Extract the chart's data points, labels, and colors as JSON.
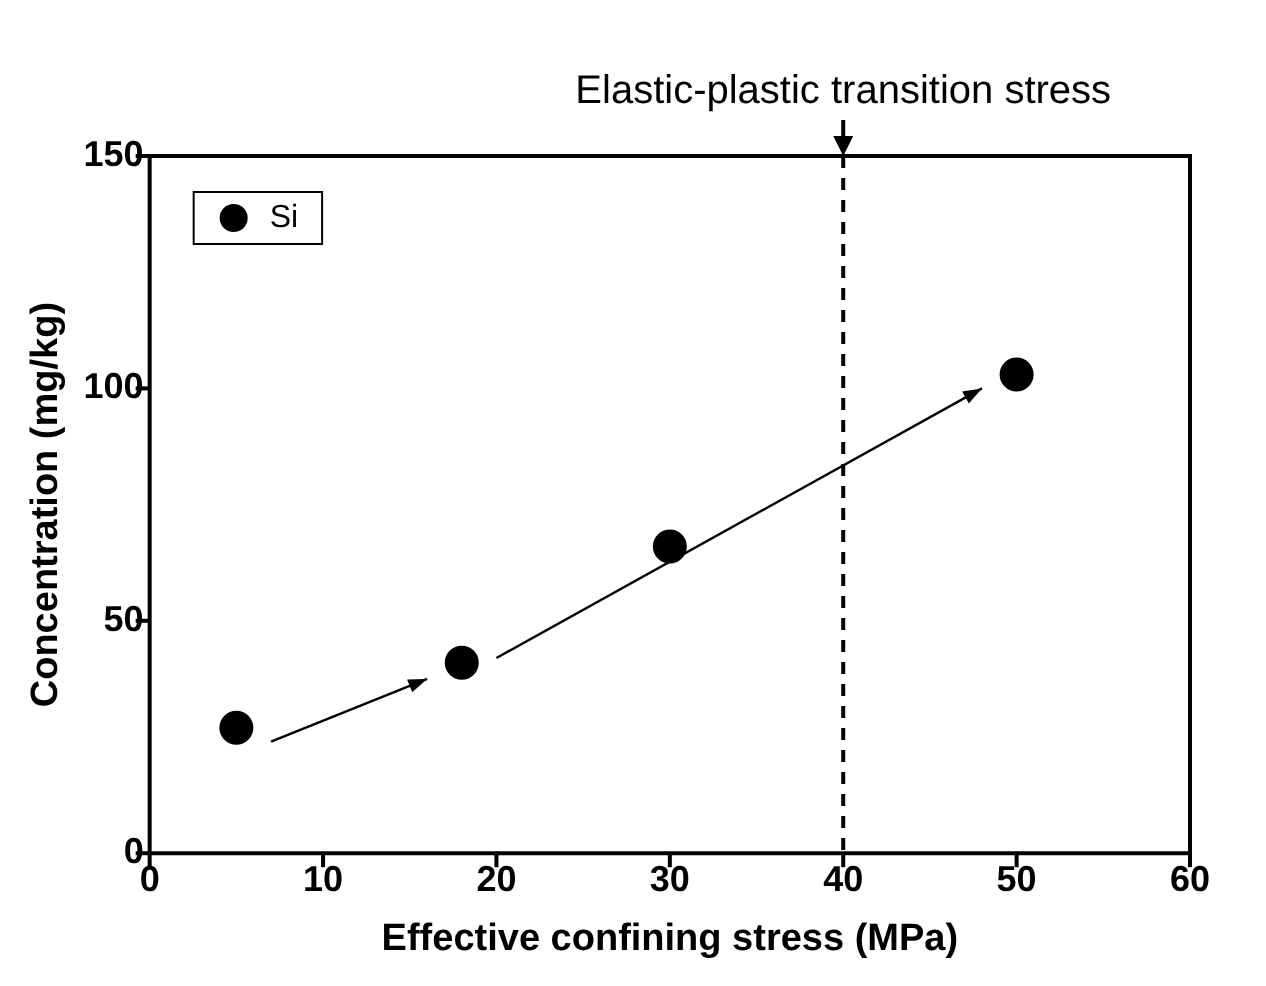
{
  "chart_data": {
    "type": "scatter",
    "xlabel": "Effective confining stress (MPa)",
    "ylabel": "Concentration (mg/kg)",
    "x": [
      5,
      18,
      30,
      50
    ],
    "series": [
      {
        "name": "Si",
        "color": "#000000",
        "values": [
          27,
          41,
          66,
          103
        ]
      }
    ],
    "xlim": [
      0,
      60
    ],
    "xticks": [
      0,
      10,
      20,
      30,
      40,
      50,
      60
    ],
    "ylim": [
      0,
      150
    ],
    "yticks": [
      0,
      50,
      100,
      150
    ],
    "ref_lines": [
      {
        "axis": "x",
        "value": 40,
        "label": "Elastic-plastic transition stress",
        "color": "#000000",
        "line_style": "dashed"
      }
    ],
    "marker": "circle",
    "legend": "top left",
    "grid": false
  }
}
